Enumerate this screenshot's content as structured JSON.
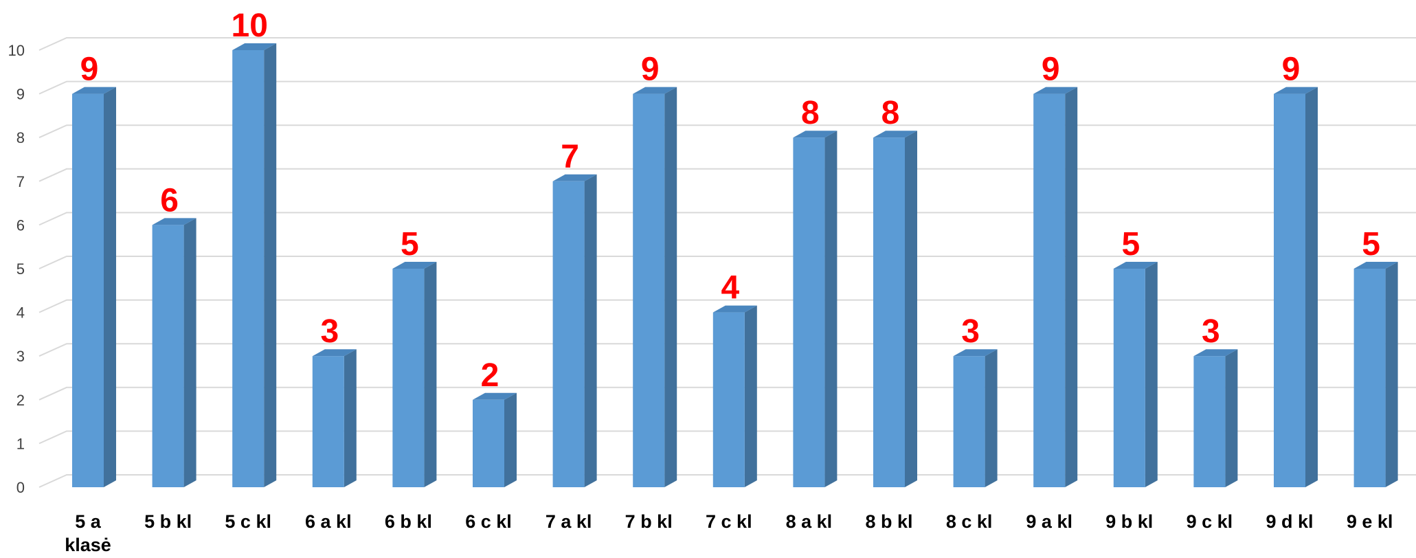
{
  "chart_data": {
    "type": "bar",
    "style": "3d-column",
    "title": "",
    "xlabel": "",
    "ylabel": "",
    "categories": [
      "5 a klasė",
      "5 b kl",
      "5 c kl",
      "6 a kl",
      "6 b kl",
      "6 c kl",
      "7 a kl",
      "7 b kl",
      "7 c kl",
      "8 a kl",
      "8 b kl",
      "8 c kl",
      "9 a kl",
      "9 b kl",
      "9 c kl",
      "9 d kl",
      "9 e kl"
    ],
    "category_label_lines": [
      [
        "5 a",
        "klasė"
      ],
      [
        "5 b kl"
      ],
      [
        "5 c kl"
      ],
      [
        "6 a kl"
      ],
      [
        "6 b kl"
      ],
      [
        "6 c kl"
      ],
      [
        "7 a kl"
      ],
      [
        "7 b kl"
      ],
      [
        "7 c kl"
      ],
      [
        "8 a kl"
      ],
      [
        "8 b kl"
      ],
      [
        "8 c kl"
      ],
      [
        "9 a kl"
      ],
      [
        "9 b kl"
      ],
      [
        "9 c kl"
      ],
      [
        "9 d kl"
      ],
      [
        "9 e kl"
      ]
    ],
    "series": [
      {
        "values": [
          9,
          6,
          10,
          3,
          5,
          2,
          7,
          9,
          4,
          8,
          8,
          3,
          9,
          5,
          3,
          9,
          5
        ]
      }
    ],
    "data_labels": [
      "9",
      "6",
      "10",
      "3",
      "5",
      "2",
      "7",
      "9",
      "4",
      "8",
      "8",
      "3",
      "9",
      "5",
      "3",
      "9",
      "5"
    ],
    "ylim": [
      0,
      10
    ],
    "yticks": [
      "0",
      "1",
      "2",
      "3",
      "4",
      "5",
      "6",
      "7",
      "8",
      "9",
      "10"
    ],
    "grid": true,
    "legend": "none",
    "colors": {
      "bar_front": "#5b9bd5",
      "bar_side": "#41719c",
      "bar_top": "#4a86be",
      "data_label": "#ff0000",
      "grid": "#d9d9d9",
      "tick_label": "#404040",
      "category_label": "#000000"
    }
  }
}
